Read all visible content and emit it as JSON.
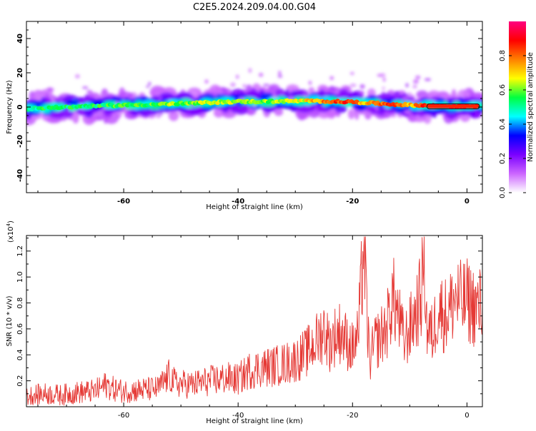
{
  "title": "C2E5.2024.209.04.00.G04",
  "chart_data": [
    {
      "type": "heatmap",
      "xlabel": "Height of straight line (km)",
      "ylabel": "Frequency (Hz)",
      "xlim": [
        -77,
        2.7
      ],
      "ylim": [
        -50,
        50
      ],
      "xticks": [
        -60,
        -40,
        -20,
        0
      ],
      "yticks": [
        -40,
        -20,
        0,
        20,
        40
      ],
      "ridge": {
        "x": [
          -77,
          -72,
          -68,
          -64,
          -60,
          -56,
          -52,
          -48,
          -44,
          -40,
          -36,
          -32,
          -28,
          -24,
          -20,
          -18,
          -16,
          -14,
          -12,
          -10,
          -8,
          -6,
          -4,
          -2,
          0,
          2
        ],
        "freq": [
          -1.0,
          -0.3,
          0.3,
          0.8,
          1.1,
          1.4,
          1.8,
          2.2,
          2.8,
          3.2,
          3.2,
          3.4,
          3.6,
          3.3,
          3.0,
          2.6,
          2.2,
          1.8,
          1.5,
          1.2,
          1.0,
          0.8,
          0.6,
          0.5,
          0.4,
          0.4
        ],
        "amplitude": [
          0.5,
          0.55,
          0.52,
          0.55,
          0.58,
          0.55,
          0.62,
          0.6,
          0.66,
          0.62,
          0.6,
          0.62,
          0.68,
          0.82,
          0.85,
          0.7,
          0.78,
          0.82,
          0.8,
          0.7,
          0.82,
          0.92,
          0.95,
          0.95,
          0.95,
          0.95
        ]
      },
      "colorbar": {
        "label": "Normalized spectral amplitude",
        "range": [
          0.0,
          1.0
        ],
        "ticks": [
          0.0,
          0.2,
          0.4,
          0.6,
          0.8
        ],
        "colors": [
          "#ffffff",
          "#cc66ff",
          "#7a00ff",
          "#0000ff",
          "#00ffff",
          "#00ff40",
          "#ffff00",
          "#ff8000",
          "#ff0000",
          "#ff0080"
        ]
      }
    },
    {
      "type": "line",
      "xlabel": "Height of straight line (km)",
      "ylabel": "SNR (10 * v/v)",
      "multiplier_label": "(x10",
      "multiplier_exp": "4",
      "multiplier_close": ")",
      "xlim": [
        -77,
        2.7
      ],
      "ylim": [
        0,
        1.32
      ],
      "xticks": [
        -60,
        -40,
        -20,
        0
      ],
      "yticks": [
        0.2,
        0.4,
        0.6,
        0.8,
        1.0,
        1.2
      ],
      "color": "#e53935",
      "series": [
        {
          "x": [
            -77,
            -74,
            -71,
            -68,
            -65,
            -63,
            -62,
            -60,
            -57,
            -54,
            -52,
            -51,
            -48,
            -45,
            -42,
            -40,
            -38,
            -36,
            -34,
            -32,
            -30,
            -28,
            -26,
            -25,
            -24,
            -23,
            -22,
            -21,
            -20,
            -19,
            -18.5,
            -18,
            -17.5,
            -17,
            -16,
            -15,
            -14,
            -13,
            -12,
            -11,
            -10,
            -9,
            -8,
            -7.5,
            -7,
            -6,
            -5,
            -4,
            -3,
            -2,
            -1,
            0,
            1,
            2,
            2.7
          ],
          "y": [
            0.08,
            0.1,
            0.09,
            0.11,
            0.12,
            0.17,
            0.14,
            0.12,
            0.13,
            0.14,
            0.24,
            0.18,
            0.17,
            0.2,
            0.22,
            0.21,
            0.28,
            0.3,
            0.31,
            0.33,
            0.36,
            0.42,
            0.52,
            0.6,
            0.48,
            0.55,
            0.58,
            0.5,
            0.45,
            0.55,
            0.9,
            1.32,
            0.7,
            0.35,
            0.5,
            0.55,
            0.62,
            0.85,
            0.7,
            0.5,
            0.6,
            0.72,
            0.85,
            1.22,
            0.6,
            0.55,
            0.78,
            0.7,
            0.75,
            0.85,
            0.8,
            0.82,
            0.78,
            0.75,
            0.8
          ]
        }
      ]
    }
  ]
}
